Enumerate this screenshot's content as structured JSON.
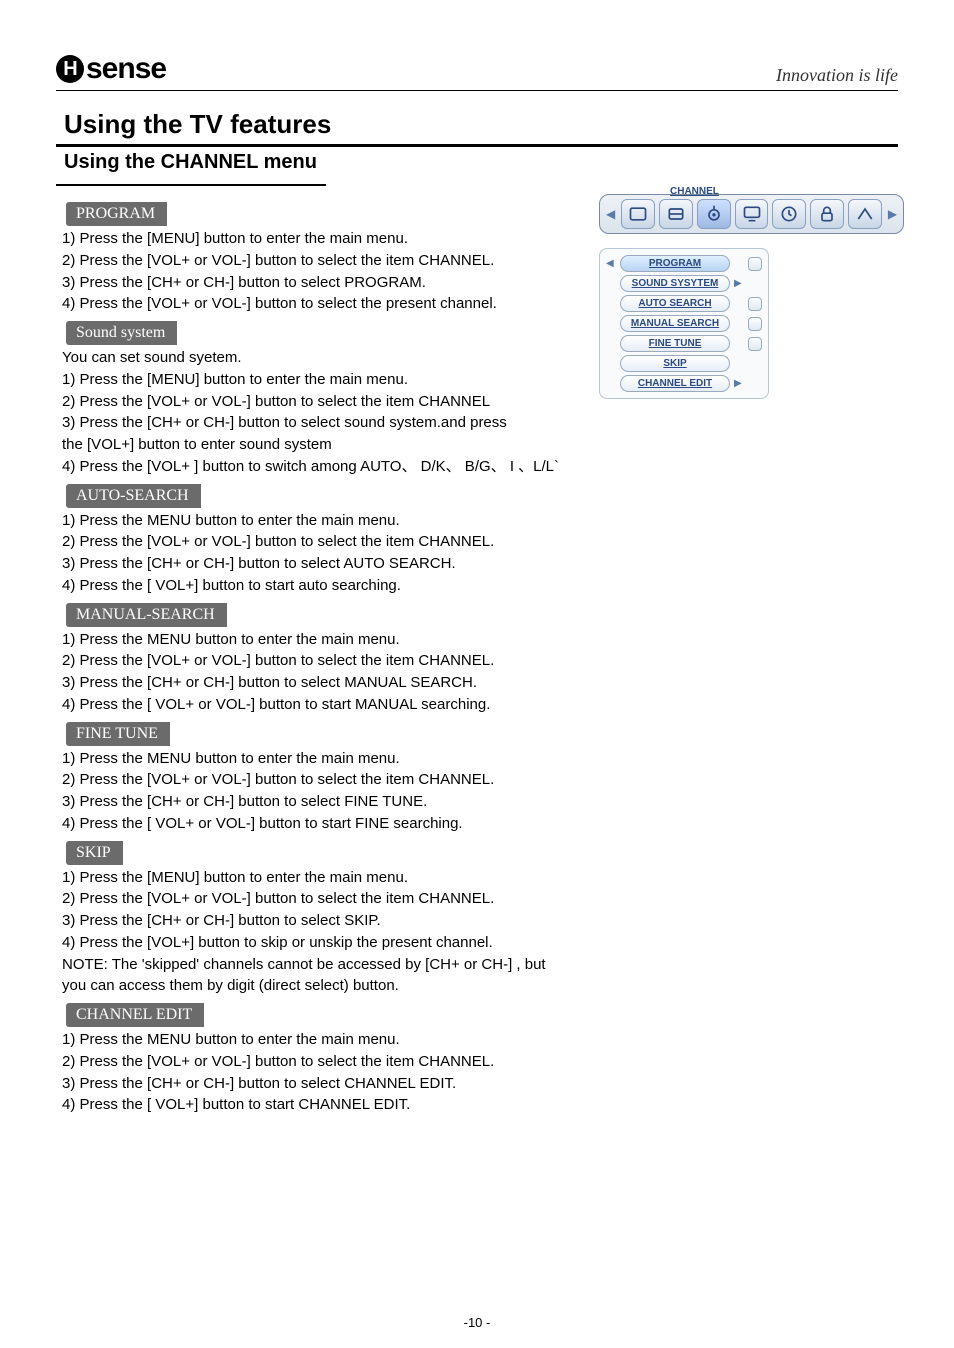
{
  "header": {
    "logo_text": "sense",
    "tagline": "Innovation  is  life"
  },
  "h1": "Using the TV features",
  "h2": "Using the CHANNEL  menu",
  "osd": {
    "title": "CHANNEL",
    "active_index": 2,
    "menu_items": [
      {
        "label": "PROGRAM",
        "selected": true,
        "has_arrow": false,
        "has_knob": true
      },
      {
        "label": "SOUND SYSYTEM",
        "selected": false,
        "has_arrow": true,
        "has_knob": false
      },
      {
        "label": "AUTO SEARCH",
        "selected": false,
        "has_arrow": false,
        "has_knob": true
      },
      {
        "label": "MANUAL SEARCH",
        "selected": false,
        "has_arrow": false,
        "has_knob": true
      },
      {
        "label": "FINE TUNE",
        "selected": false,
        "has_arrow": false,
        "has_knob": true
      },
      {
        "label": "SKIP",
        "selected": false,
        "has_arrow": false,
        "has_knob": false
      },
      {
        "label": "CHANNEL EDIT",
        "selected": false,
        "has_arrow": true,
        "has_knob": false
      }
    ]
  },
  "sections": [
    {
      "tag": "PROGRAM",
      "lines": [
        "1) Press the [MENU] button to enter the main menu.",
        "2) Press the [VOL+ or VOL-] button to select the item CHANNEL.",
        "3) Press the [CH+ or CH-] button to select PROGRAM.",
        "4) Press the [VOL+ or VOL-] button  to select the present channel."
      ]
    },
    {
      "tag": "Sound system",
      "lines": [
        "You can set sound syetem.",
        "1) Press the [MENU] button to enter the main menu.",
        "2) Press the [VOL+ or VOL-] button to select the item CHANNEL",
        "3) Press the [CH+ or CH-] button to select sound system.and press",
        "    the [VOL+] button to enter sound system",
        "4) Press the [VOL+ ] button to switch among AUTO、 D/K、 B/G、 I 、L/L`"
      ]
    },
    {
      "tag": "AUTO-SEARCH",
      "lines": [
        "1) Press the MENU button to enter the main menu.",
        "2) Press the [VOL+ or VOL-] button to select the item CHANNEL.",
        "3) Press the [CH+ or CH-] button to select AUTO SEARCH.",
        "4) Press the  [ VOL+]  button to start auto searching."
      ]
    },
    {
      "tag": "MANUAL-SEARCH",
      "lines": [
        "1) Press the MENU button to enter the main menu.",
        "2) Press the [VOL+ or VOL-] button to select the item CHANNEL.",
        "3) Press the [CH+ or CH-] button to select MANUAL SEARCH.",
        "4) Press the  [ VOL+ or VOL-]  button to start MANUAL  searching."
      ]
    },
    {
      "tag": "FINE TUNE",
      "lines": [
        "1) Press the MENU button to enter the main menu.",
        "2) Press the [VOL+ or VOL-] button to select the item CHANNEL.",
        "3) Press the [CH+ or CH-] button to select FINE TUNE.",
        "4) Press the  [ VOL+ or VOL-]  button to start FINE searching."
      ]
    },
    {
      "tag": "SKIP",
      "lines": [
        "1) Press the [MENU] button to enter the main menu.",
        "2) Press the [VOL+ or VOL-] button to select the item CHANNEL.",
        "3) Press the [CH+ or CH-] button to select SKIP.",
        "4) Press the [VOL+] button to skip or unskip  the present channel.",
        "NOTE: The 'skipped' channels cannot be accessed by [CH+ or CH-] , but you can access them by digit (direct select) button."
      ]
    },
    {
      "tag": "CHANNEL EDIT",
      "lines": [
        "1) Press the MENU button to enter the main menu.",
        "2) Press the [VOL+ or VOL-] button to select the item CHANNEL.",
        "3) Press the [CH+ or CH-] button to select CHANNEL EDIT.",
        "4) Press the  [ VOL+]  button to start CHANNEL EDIT."
      ]
    }
  ],
  "footer": "-10 -",
  "colors": {
    "tag_bg": "#6b6b6b",
    "tag_fg": "#ffffff",
    "osd_border": "#7a8aa0",
    "osd_text": "#2b4a80"
  }
}
